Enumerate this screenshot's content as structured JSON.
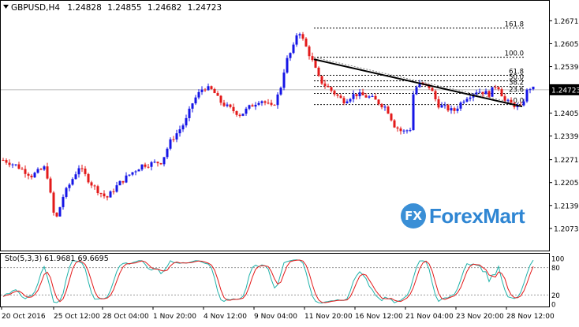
{
  "chart_data": [
    {
      "type": "candlestick",
      "instrument": "GBPUSD,H4",
      "header_values": [
        "1.24828",
        "1.24855",
        "1.24682",
        "1.24723"
      ],
      "x_ticks": [
        "20 Oct 2016",
        "25 Oct 12:00",
        "28 Oct 04:00",
        "1 Nov 20:00",
        "4 Nov 12:00",
        "9 Nov 04:00",
        "11 Nov 20:00",
        "16 Nov 12:00",
        "21 Nov 04:00",
        "23 Nov 20:00",
        "28 Nov 12:00"
      ],
      "y_ticks": [
        "1.26710",
        "1.26050",
        "1.25390",
        "1.24723",
        "1.24050",
        "1.23390",
        "1.22710",
        "1.22050",
        "1.21390",
        "1.20730"
      ],
      "ylim": [
        1.205,
        1.269
      ],
      "current_price": "1.24723",
      "fibonacci": {
        "levels": [
          {
            "label": "161.8",
            "price": 1.265
          },
          {
            "label": "100.0",
            "price": 1.2566
          },
          {
            "label": "61.8",
            "price": 1.2514
          },
          {
            "label": "50.0",
            "price": 1.2498
          },
          {
            "label": "38.2",
            "price": 1.2482
          },
          {
            "label": "23.6",
            "price": 1.2462
          },
          {
            "label": "0.0",
            "price": 1.243
          }
        ]
      },
      "trendline": {
        "from": [
          1.256
        ],
        "to": [
          1.2424
        ]
      },
      "colors": {
        "up": "#1515e6",
        "down": "#e31a1a",
        "trendline": "#000000",
        "fib": "#000000"
      }
    },
    {
      "type": "line",
      "indicator": "Sto(5,3,3) 61.9681 69.6695",
      "ylim": [
        0,
        100
      ],
      "y_ticks": [
        "100",
        "80",
        "20",
        "0"
      ],
      "levels": [
        80,
        20
      ],
      "series": [
        {
          "color": "#20b2aa"
        },
        {
          "color": "#e31a1a"
        }
      ]
    }
  ],
  "watermark": {
    "text": "ForexMart",
    "badge": "FX"
  }
}
